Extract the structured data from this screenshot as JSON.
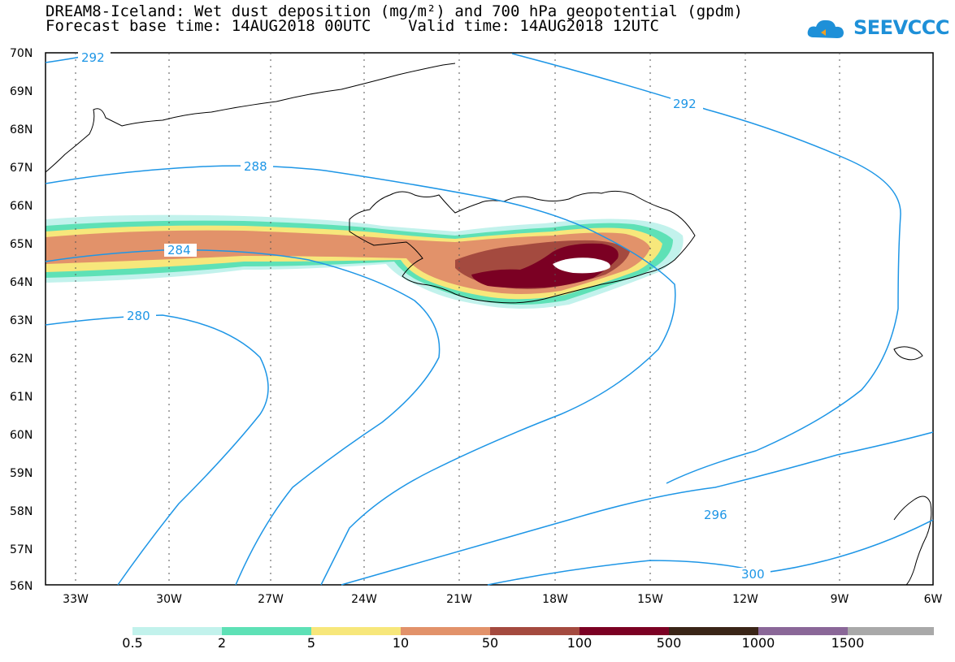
{
  "title": {
    "line1": "DREAM8-Iceland: Wet dust deposition (mg/m²) and 700 hPa geopotential (gpdm)",
    "line2": "Forecast base time: 14AUG2018 00UTC    Valid time: 14AUG2018 12UTC"
  },
  "logo": {
    "text": "SEEVCCC",
    "icon": "cloud-logo-icon"
  },
  "axes": {
    "lat_labels": [
      "70N",
      "69N",
      "68N",
      "67N",
      "66N",
      "65N",
      "64N",
      "63N",
      "62N",
      "61N",
      "60N",
      "59N",
      "58N",
      "57N",
      "56N"
    ],
    "lon_labels": [
      "33W",
      "30W",
      "27W",
      "24W",
      "21W",
      "18W",
      "15W",
      "12W",
      "9W",
      "6W"
    ]
  },
  "contours": [
    {
      "value": "292",
      "label": "292"
    },
    {
      "value": "288",
      "label": "288"
    },
    {
      "value": "284",
      "label": "284"
    },
    {
      "value": "280",
      "label": "280"
    },
    {
      "value": "296",
      "label": "296"
    },
    {
      "value": "300",
      "label": "300"
    }
  ],
  "colors": {
    "contour": "#1e96e6",
    "bins": [
      "#c2f2ec",
      "#5ee1b6",
      "#f7e77b",
      "#e2926a",
      "#a44a3f",
      "#7b0023",
      "#3a2517",
      "#8a6798",
      "#a9a9a9"
    ]
  },
  "legend": {
    "labels": [
      "0.5",
      "2",
      "5",
      "10",
      "50",
      "100",
      "500",
      "1000",
      "1500"
    ]
  }
}
